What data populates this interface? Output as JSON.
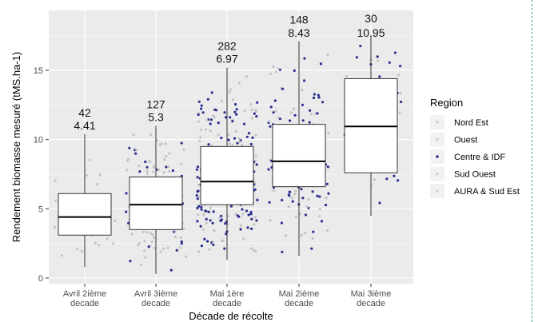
{
  "chart_data": {
    "type": "box",
    "xlabel": "Décade de récolte",
    "ylabel": "Rendement biomasse mesuré (tMS.ha-1)",
    "ylim": [
      0,
      17.5
    ],
    "yticks": [
      0,
      5,
      10,
      15
    ],
    "grid": true,
    "legend": {
      "title": "Region",
      "position": "right",
      "entries": [
        {
          "name": "Nord Est",
          "color": "#cfcfcf"
        },
        {
          "name": "Ouest",
          "color": "#cfcfcf"
        },
        {
          "name": "Centre & IDF",
          "color": "#2b2f8f"
        },
        {
          "name": "Sud Ouest",
          "color": "#cfcfcf"
        },
        {
          "name": "AURA & Sud Est",
          "color": "#cfcfcf"
        }
      ]
    },
    "categories": [
      {
        "label": [
          "Avril 2ième",
          "decade"
        ],
        "n": "42",
        "median_label": "4.41",
        "min": 0.8,
        "q1": 3.1,
        "median": 4.41,
        "q3": 6.1,
        "max": 10.4
      },
      {
        "label": [
          "Avril 3ième",
          "decade"
        ],
        "n": "127",
        "median_label": "5.3",
        "min": 0.3,
        "q1": 3.5,
        "median": 5.3,
        "q3": 7.3,
        "max": 11.0
      },
      {
        "label": [
          "Mai 1ère",
          "decade"
        ],
        "n": "282",
        "median_label": "6.97",
        "min": 1.3,
        "q1": 5.3,
        "median": 6.97,
        "q3": 9.5,
        "max": 15.2
      },
      {
        "label": [
          "Mai 2ième",
          "decade"
        ],
        "n": "148",
        "median_label": "8.43",
        "min": 1.6,
        "q1": 6.6,
        "median": 8.43,
        "q3": 11.1,
        "max": 17.1
      },
      {
        "label": [
          "Mai 3ième",
          "decade"
        ],
        "n": "30",
        "median_label": "10.95",
        "min": 4.5,
        "q1": 7.6,
        "median": 10.95,
        "q3": 14.4,
        "max": 17.5
      }
    ],
    "colors": {
      "panel": "#ebebeb",
      "grid": "#ffffff",
      "box_fill": "#ffffff",
      "box_stroke": "#333333",
      "point_grey": "#c4c4c4",
      "point_blue": "#2b2f8f"
    }
  }
}
